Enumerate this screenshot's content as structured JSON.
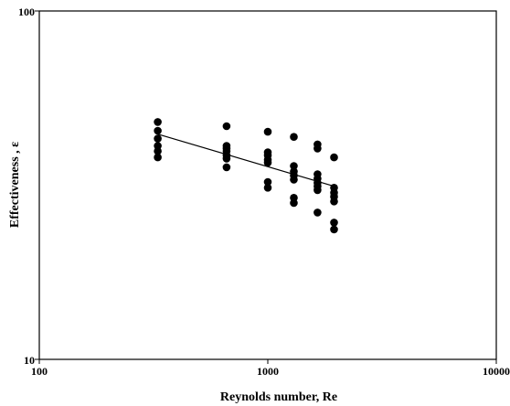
{
  "chart_data": {
    "type": "scatter",
    "title": "",
    "xlabel": "Reynolds number, Re",
    "ylabel": "Effectiveness , ε",
    "x_scale": "log",
    "y_scale": "log",
    "xlim": [
      100,
      10000
    ],
    "ylim": [
      10,
      100
    ],
    "x_ticks": [
      "100",
      "1000",
      "10000"
    ],
    "y_ticks": [
      "100",
      "10"
    ],
    "grid": false,
    "legend": "none",
    "colors": {
      "points": "#000000",
      "line": "#000000",
      "axes": "#000000"
    },
    "series": [
      {
        "points": [
          {
            "x": 330,
            "y": 48.0
          },
          {
            "x": 330,
            "y": 45.3
          },
          {
            "x": 330,
            "y": 43.0
          },
          {
            "x": 330,
            "y": 41.0
          },
          {
            "x": 330,
            "y": 39.6
          },
          {
            "x": 330,
            "y": 38.0
          },
          {
            "x": 660,
            "y": 46.7
          },
          {
            "x": 660,
            "y": 41.0
          },
          {
            "x": 660,
            "y": 40.3
          },
          {
            "x": 660,
            "y": 39.6
          },
          {
            "x": 660,
            "y": 38.5
          },
          {
            "x": 660,
            "y": 37.7
          },
          {
            "x": 660,
            "y": 35.6
          },
          {
            "x": 1000,
            "y": 45.0
          },
          {
            "x": 1000,
            "y": 39.3
          },
          {
            "x": 1000,
            "y": 38.5
          },
          {
            "x": 1000,
            "y": 37.4
          },
          {
            "x": 1000,
            "y": 36.7
          },
          {
            "x": 1000,
            "y": 32.3
          },
          {
            "x": 1000,
            "y": 31.1
          },
          {
            "x": 1300,
            "y": 43.5
          },
          {
            "x": 1300,
            "y": 35.9
          },
          {
            "x": 1300,
            "y": 34.6
          },
          {
            "x": 1300,
            "y": 33.7
          },
          {
            "x": 1300,
            "y": 32.8
          },
          {
            "x": 1300,
            "y": 29.1
          },
          {
            "x": 1300,
            "y": 28.1
          },
          {
            "x": 1650,
            "y": 41.4
          },
          {
            "x": 1650,
            "y": 40.3
          },
          {
            "x": 1650,
            "y": 34.0
          },
          {
            "x": 1650,
            "y": 33.0
          },
          {
            "x": 1650,
            "y": 32.1
          },
          {
            "x": 1650,
            "y": 31.4
          },
          {
            "x": 1650,
            "y": 30.6
          },
          {
            "x": 1650,
            "y": 26.4
          },
          {
            "x": 1950,
            "y": 38.0
          },
          {
            "x": 1950,
            "y": 31.1
          },
          {
            "x": 1950,
            "y": 30.1
          },
          {
            "x": 1950,
            "y": 29.3
          },
          {
            "x": 1950,
            "y": 28.4
          },
          {
            "x": 1950,
            "y": 24.7
          },
          {
            "x": 1950,
            "y": 23.6
          }
        ]
      }
    ],
    "trendline": {
      "x": [
        330,
        1950
      ],
      "y": [
        44.3,
        31.4
      ]
    }
  }
}
